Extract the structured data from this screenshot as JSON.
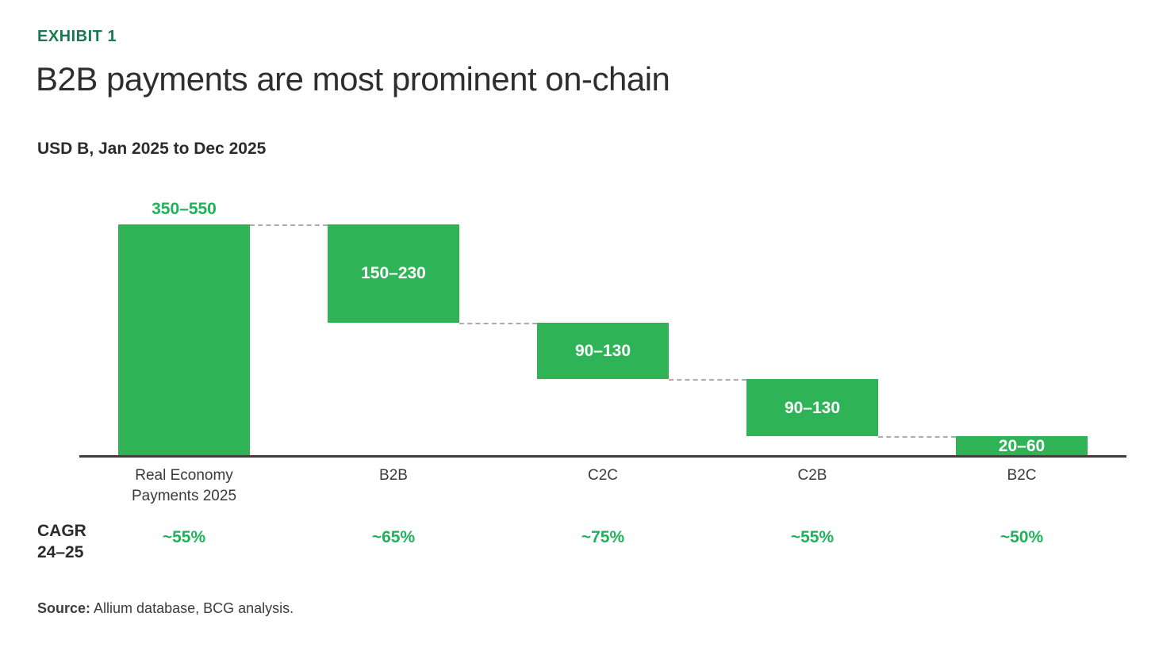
{
  "page": {
    "exhibit_label": "EXHIBIT 1",
    "title": "B2B payments are most prominent on-chain",
    "units_subtitle": "USD B, Jan 2025 to Dec 2025",
    "source_label": "Source:",
    "source_text": " Allium database, BCG analysis."
  },
  "cagr": {
    "header_line1": "CAGR",
    "header_line2": "24–25"
  },
  "colors": {
    "bar_green": "#2EB457",
    "label_green": "#1FB25A",
    "exhibit_green": "#197A51",
    "connector_gray": "#ABABAB",
    "axis_dark": "#3F3F3F"
  },
  "chart_data": {
    "type": "bar",
    "subtype": "waterfall",
    "title": "B2B payments are most prominent on-chain",
    "units": "USD B, Jan 2025 to Dec 2025",
    "ylim": [
      0,
      450
    ],
    "grid": false,
    "legend": false,
    "orientation": "vertical",
    "connector_style": "dashed",
    "bars": [
      {
        "category": "Real Economy\nPayments 2025",
        "value_label": "350–550",
        "range_usd_b": [
          350,
          550
        ],
        "mid_usd_b": 450,
        "label_position": "above",
        "cagr_24_25": "~55%"
      },
      {
        "category": "B2B",
        "value_label": "150–230",
        "range_usd_b": [
          150,
          230
        ],
        "mid_usd_b": 190,
        "label_position": "inside",
        "cagr_24_25": "~65%"
      },
      {
        "category": "C2C",
        "value_label": "90–130",
        "range_usd_b": [
          90,
          130
        ],
        "mid_usd_b": 110,
        "label_position": "inside",
        "cagr_24_25": "~75%"
      },
      {
        "category": "C2B",
        "value_label": "90–130",
        "range_usd_b": [
          90,
          130
        ],
        "mid_usd_b": 110,
        "label_position": "inside",
        "cagr_24_25": "~55%"
      },
      {
        "category": "B2C",
        "value_label": "20–60",
        "range_usd_b": [
          20,
          60
        ],
        "mid_usd_b": 40,
        "label_position": "inside",
        "cagr_24_25": "~50%"
      }
    ]
  }
}
